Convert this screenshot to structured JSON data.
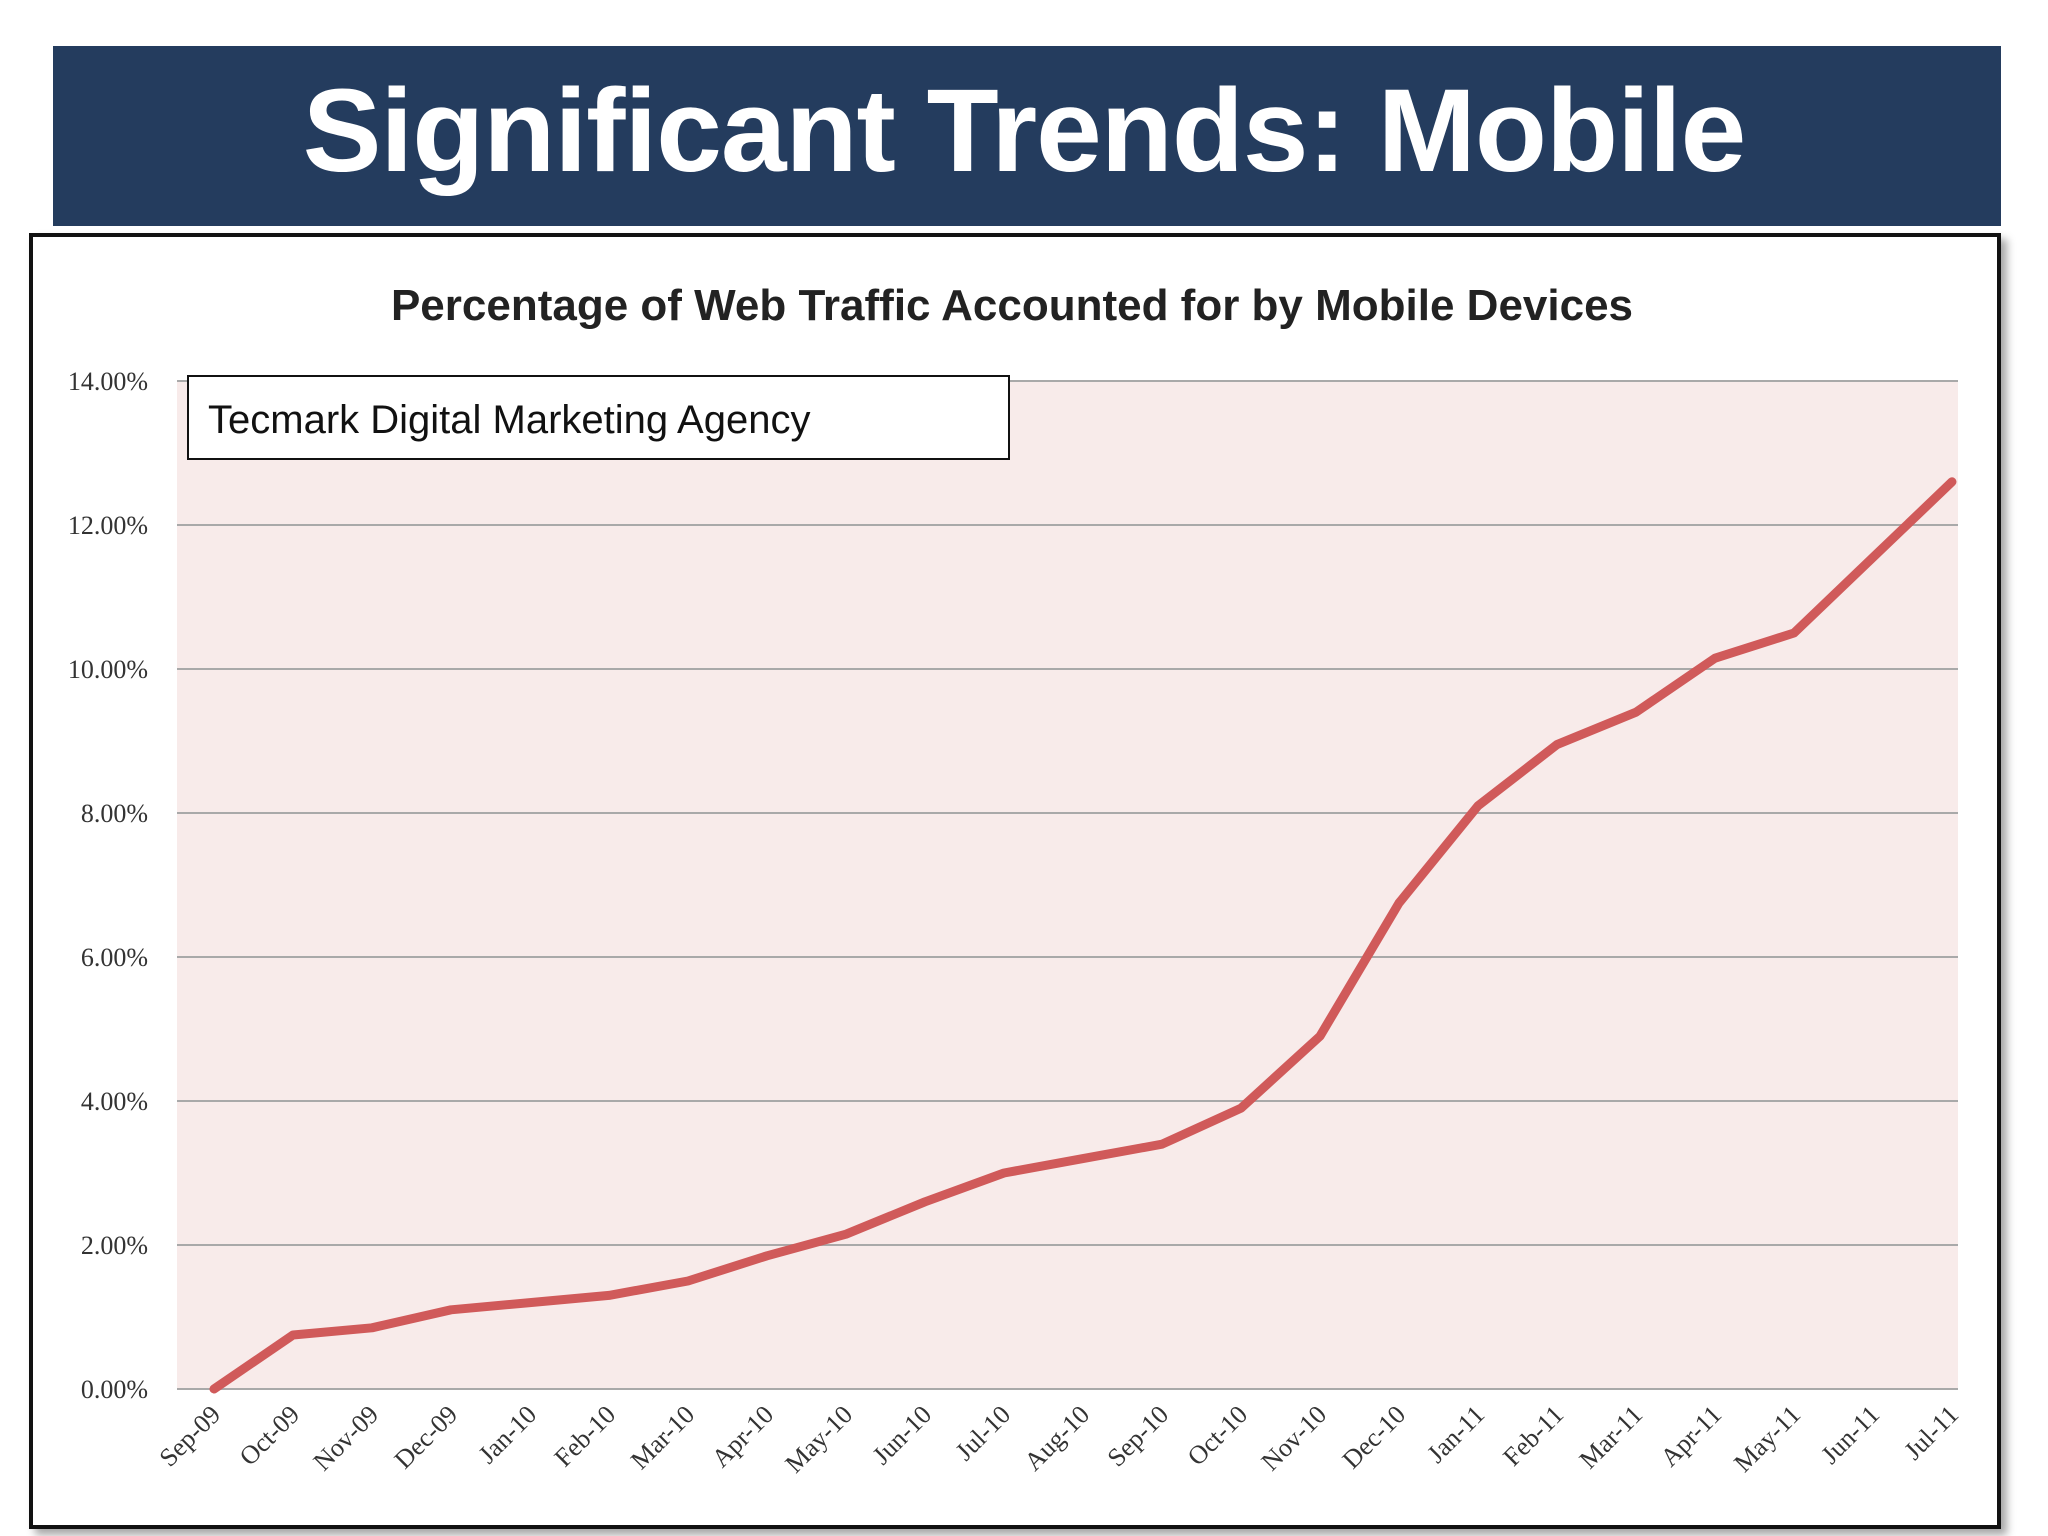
{
  "slide": {
    "title": "Significant Trends: Mobile",
    "banner_color": "#243c5e"
  },
  "chart_data": {
    "type": "line",
    "title": "Percentage of Web Traffic Accounted for by Mobile Devices",
    "annotation": "Tecmark Digital Marketing Agency",
    "xlabel": "",
    "ylabel": "",
    "categories": [
      "Sep-09",
      "Oct-09",
      "Nov-09",
      "Dec-09",
      "Jan-10",
      "Feb-10",
      "Mar-10",
      "Apr-10",
      "May-10",
      "Jun-10",
      "Jul-10",
      "Aug-10",
      "Sep-10",
      "Oct-10",
      "Nov-10",
      "Dec-10",
      "Jan-11",
      "Feb-11",
      "Mar-11",
      "Apr-11",
      "May-11",
      "Jun-11",
      "Jul-11"
    ],
    "series": [
      {
        "values": [
          0.0,
          0.75,
          0.85,
          1.1,
          1.2,
          1.3,
          1.5,
          1.85,
          2.15,
          2.6,
          3.0,
          3.2,
          3.4,
          3.9,
          4.9,
          6.75,
          8.1,
          8.95,
          9.4,
          10.15,
          10.5,
          11.55,
          12.6
        ],
        "color": "#d05a5a"
      }
    ],
    "ylim": [
      0,
      14
    ],
    "yticks": [
      "0.00%",
      "2.00%",
      "4.00%",
      "6.00%",
      "8.00%",
      "10.00%",
      "12.00%",
      "14.00%"
    ],
    "grid": true,
    "plot_background": "#f8ebea",
    "legend": "none"
  }
}
